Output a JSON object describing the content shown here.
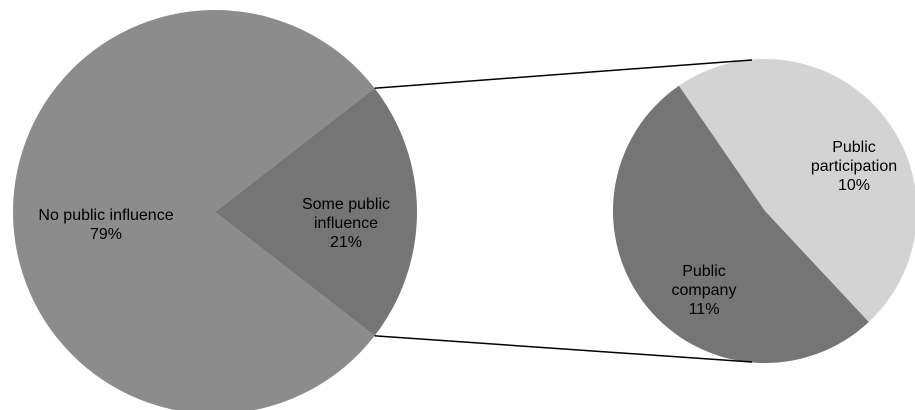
{
  "chart_data": {
    "type": "pie",
    "variant": "pie-of-pie",
    "main": {
      "slices": [
        {
          "label_lines": [
            "No public influence",
            "79%"
          ],
          "value": 79,
          "color": "#8c8c8c"
        },
        {
          "label_lines": [
            "Some public",
            "influence",
            "21%"
          ],
          "value": 21,
          "color": "#757575"
        }
      ]
    },
    "secondary": {
      "slices": [
        {
          "label_lines": [
            "Public",
            "participation",
            "10%"
          ],
          "value": 10,
          "color": "#d3d3d3"
        },
        {
          "label_lines": [
            "Public",
            "company",
            "11%"
          ],
          "value": 11,
          "color": "#757575"
        }
      ]
    },
    "connector_color": "#000000"
  }
}
